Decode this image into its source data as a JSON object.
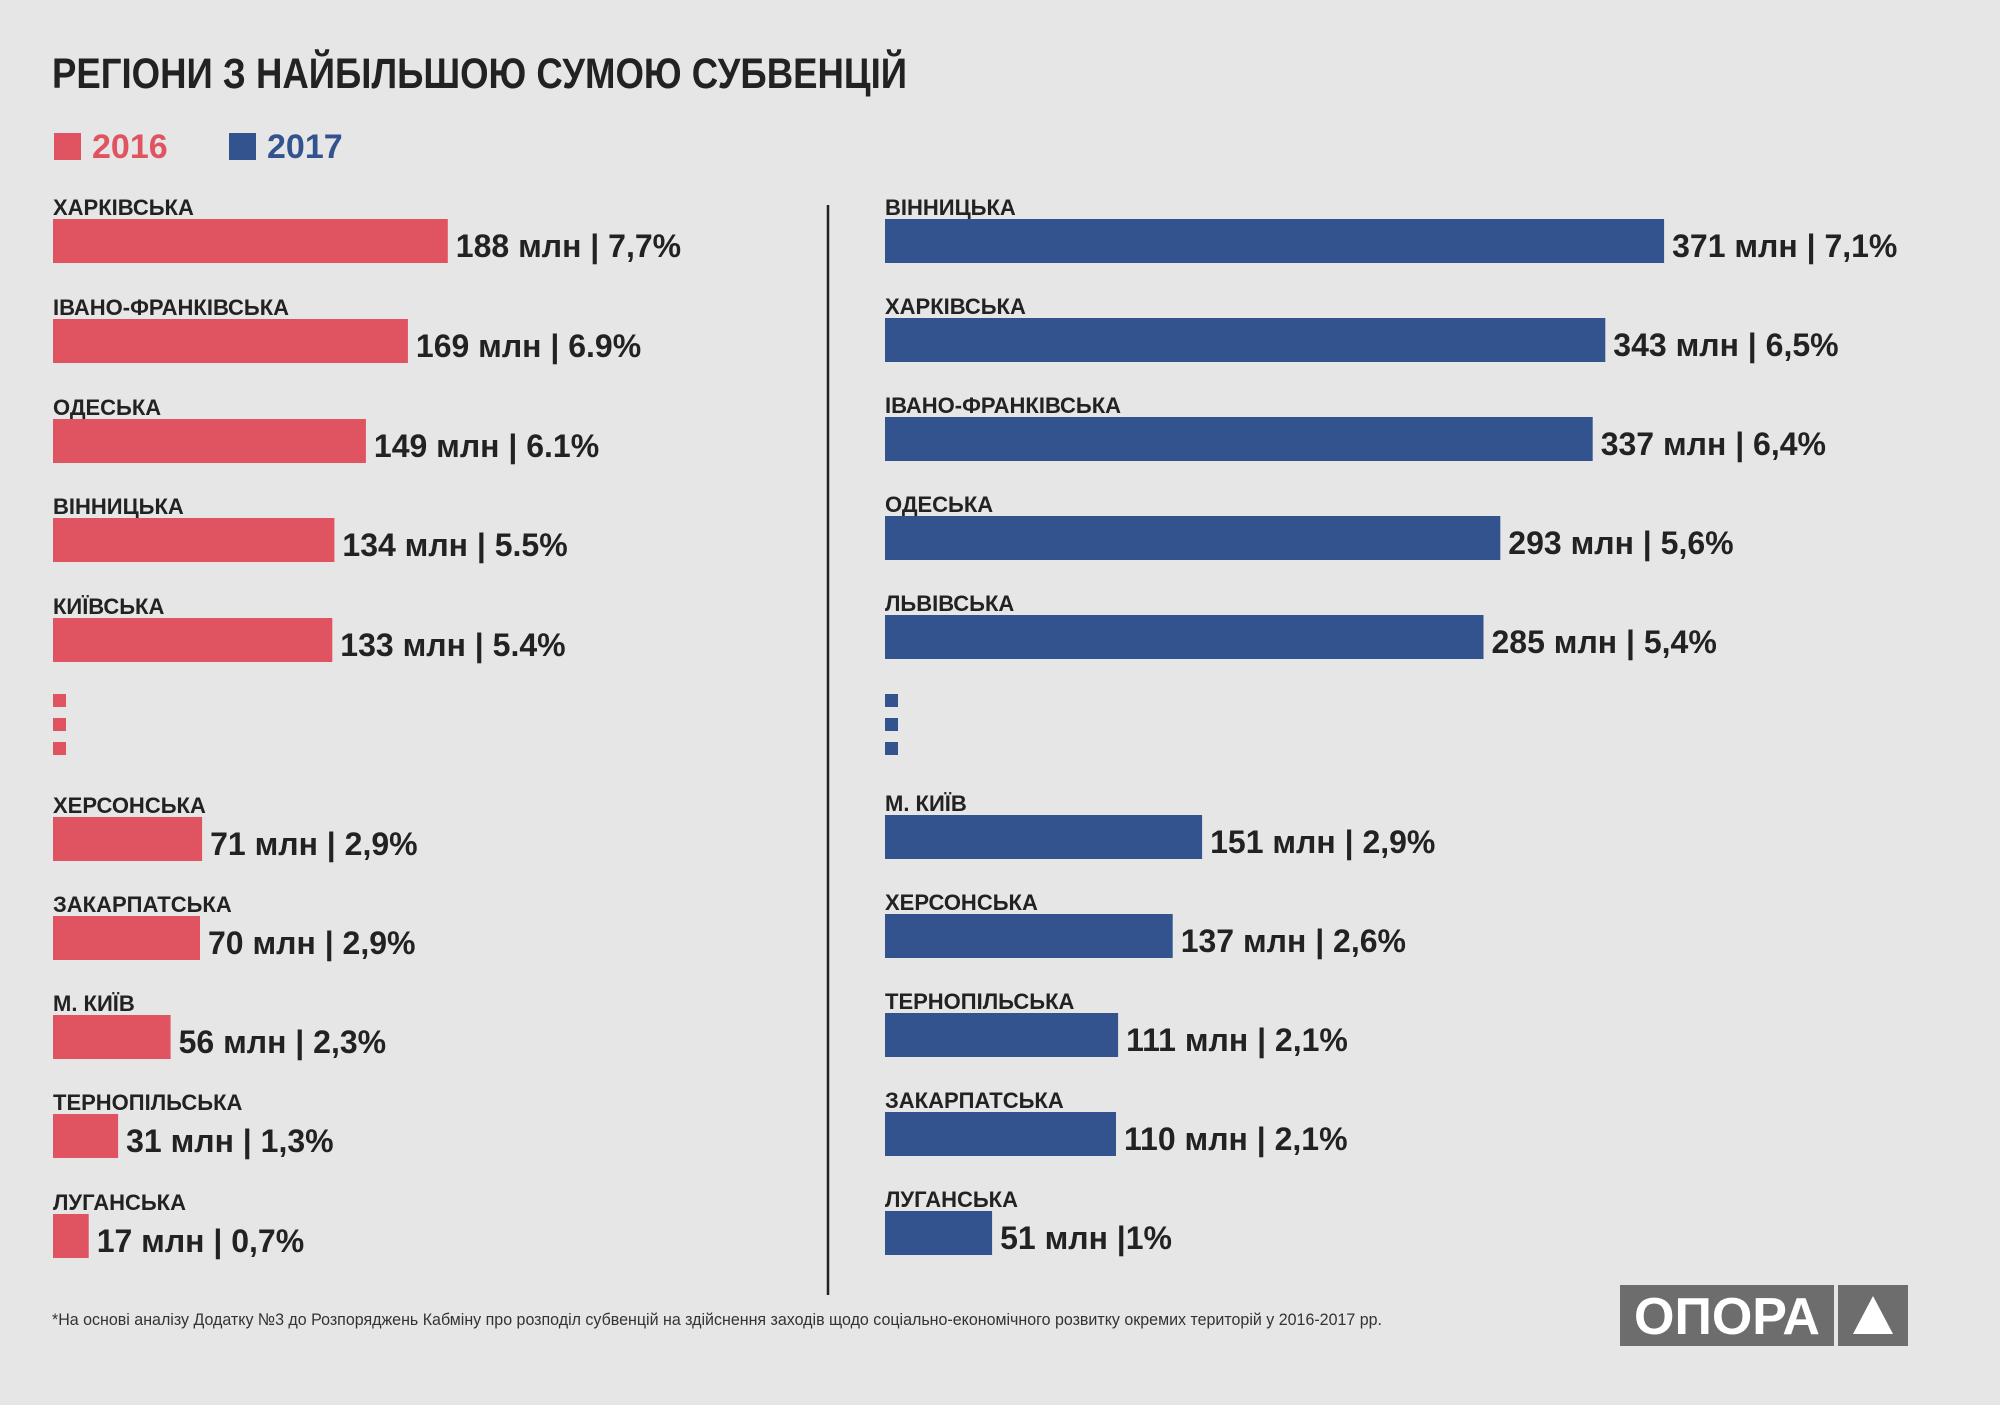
{
  "chart_data": {
    "type": "bar",
    "title": "РЕГІОНИ З НАЙБІЛЬШОЮ СУМОЮ СУБВЕНЦІЙ",
    "colors": {
      "s2016": "#e05360",
      "s2017": "#33538f",
      "text": "#222222",
      "divider": "#222222"
    },
    "legend": [
      {
        "label": "2016",
        "color": "#e05360"
      },
      {
        "label": "2017",
        "color": "#33538f"
      }
    ],
    "unit": "млн",
    "series": [
      {
        "name": "2016",
        "color": "#e05360",
        "top": [
          {
            "region": "ХАРКІВСЬКА",
            "value": 188,
            "label": "188 млн | 7,7%"
          },
          {
            "region": "ІВАНО-ФРАНКІВСЬКА",
            "value": 169,
            "label": "169 млн | 6.9%"
          },
          {
            "region": "ОДЕСЬКА",
            "value": 149,
            "label": "149 млн | 6.1%"
          },
          {
            "region": "ВІННИЦЬКА",
            "value": 134,
            "label": "134 млн | 5.5%"
          },
          {
            "region": "КИЇВСЬКА",
            "value": 133,
            "label": "133 млн | 5.4%"
          }
        ],
        "bottom": [
          {
            "region": "ХЕРСОНСЬКА",
            "value": 71,
            "label": "71 млн | 2,9%"
          },
          {
            "region": "ЗАКАРПАТСЬКА",
            "value": 70,
            "label": "70 млн | 2,9%"
          },
          {
            "region": "М. КИЇВ",
            "value": 56,
            "label": "56 млн | 2,3%"
          },
          {
            "region": "ТЕРНОПІЛЬСЬКА",
            "value": 31,
            "label": "31 млн | 1,3%"
          },
          {
            "region": "ЛУГАНСЬКА",
            "value": 17,
            "label": "17 млн | 0,7%"
          }
        ]
      },
      {
        "name": "2017",
        "color": "#33538f",
        "top": [
          {
            "region": "ВІННИЦЬКА",
            "value": 371,
            "label": "371 млн | 7,1%"
          },
          {
            "region": "ХАРКІВСЬКА",
            "value": 343,
            "label": "343 млн | 6,5%"
          },
          {
            "region": "ІВАНО-ФРАНКІВСЬКА",
            "value": 337,
            "label": "337 млн | 6,4%"
          },
          {
            "region": "ОДЕСЬКА",
            "value": 293,
            "label": "293 млн | 5,6%"
          },
          {
            "region": "ЛЬВІВСЬКА",
            "value": 285,
            "label": "285 млн | 5,4%"
          }
        ],
        "bottom": [
          {
            "region": "М. КИЇВ",
            "value": 151,
            "label": "151 млн | 2,9%"
          },
          {
            "region": "ХЕРСОНСЬКА",
            "value": 137,
            "label": "137 млн | 2,6%"
          },
          {
            "region": "ТЕРНОПІЛЬСЬКА",
            "value": 111,
            "label": "111 млн | 2,1%"
          },
          {
            "region": "ЗАКАРПАТСЬКА",
            "value": 110,
            "label": "110 млн | 2,1%"
          },
          {
            "region": "ЛУГАНСЬКА",
            "value": 51,
            "label": "51 млн |1%"
          }
        ]
      }
    ],
    "footnote": "*На основі аналізу Додатку №3 до Розпоряджень Кабміну про розподіл субвенцій на здійснення заходів щодо соціально-економічного розвитку окремих територій у 2016-2017 рр.",
    "logo_text": "ОПОРА"
  }
}
